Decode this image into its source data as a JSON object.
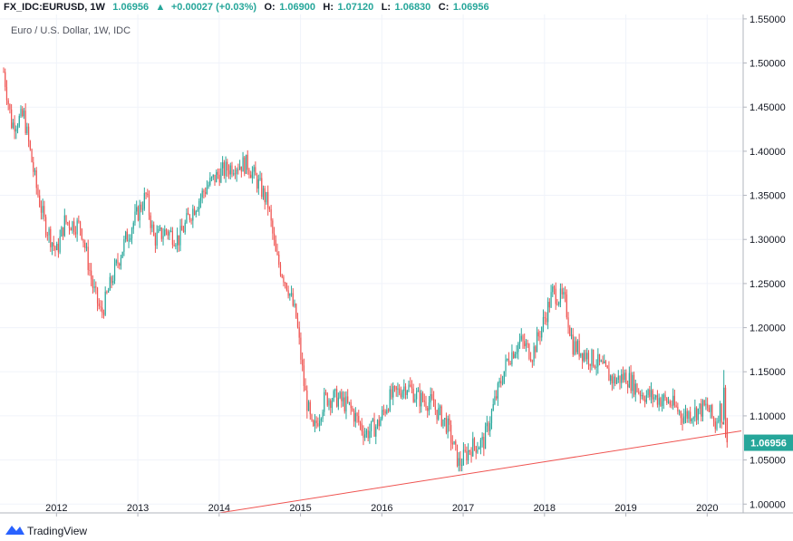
{
  "header": {
    "symbol": "FX_IDC:EURUSD, 1W",
    "last": "1.06956",
    "change": "+0.00027 (+0.03%)",
    "open_label": "O:",
    "open": "1.06900",
    "high_label": "H:",
    "high": "1.07120",
    "low_label": "L:",
    "low": "1.06830",
    "close_label": "C:",
    "close": "1.06956"
  },
  "subtitle": "Euro / U.S. Dollar, 1W, IDC",
  "brand": "TradingView",
  "colors": {
    "up": "#26a69a",
    "down": "#ef5350",
    "trendline": "#ef5350",
    "grid": "#f0f3fa",
    "axis": "#b2b5be"
  },
  "chart_data": {
    "type": "candlestick",
    "title": "Euro / U.S. Dollar, 1W, IDC",
    "xlabel": "",
    "ylabel": "",
    "x_range": [
      2011.35,
      2020.42
    ],
    "ylim": [
      0.99,
      1.555
    ],
    "x_ticks": [
      "2012",
      "2013",
      "2014",
      "2015",
      "2016",
      "2017",
      "2018",
      "2019",
      "2020"
    ],
    "x_tick_values": [
      2012,
      2013,
      2014,
      2015,
      2016,
      2017,
      2018,
      2019,
      2020
    ],
    "y_ticks": [
      "1.00000",
      "1.05000",
      "1.10000",
      "1.15000",
      "1.20000",
      "1.25000",
      "1.30000",
      "1.35000",
      "1.40000",
      "1.45000",
      "1.50000",
      "1.55000"
    ],
    "y_tick_values": [
      1.0,
      1.05,
      1.1,
      1.15,
      1.2,
      1.25,
      1.3,
      1.35,
      1.4,
      1.45,
      1.5,
      1.55
    ],
    "last_price_label": "1.06956",
    "last_price": 1.06956,
    "path": [
      [
        2011.35,
        1.49
      ],
      [
        2011.45,
        1.43
      ],
      [
        2011.6,
        1.44
      ],
      [
        2011.75,
        1.36
      ],
      [
        2011.85,
        1.32
      ],
      [
        2012.0,
        1.285
      ],
      [
        2012.1,
        1.32
      ],
      [
        2012.3,
        1.315
      ],
      [
        2012.45,
        1.245
      ],
      [
        2012.55,
        1.215
      ],
      [
        2012.7,
        1.26
      ],
      [
        2012.85,
        1.3
      ],
      [
        2013.0,
        1.33
      ],
      [
        2013.1,
        1.35
      ],
      [
        2013.2,
        1.3
      ],
      [
        2013.35,
        1.31
      ],
      [
        2013.5,
        1.3
      ],
      [
        2013.65,
        1.33
      ],
      [
        2013.85,
        1.36
      ],
      [
        2014.0,
        1.375
      ],
      [
        2014.2,
        1.385
      ],
      [
        2014.35,
        1.385
      ],
      [
        2014.5,
        1.36
      ],
      [
        2014.6,
        1.34
      ],
      [
        2014.7,
        1.28
      ],
      [
        2014.85,
        1.245
      ],
      [
        2014.95,
        1.21
      ],
      [
        2015.05,
        1.13
      ],
      [
        2015.15,
        1.08
      ],
      [
        2015.3,
        1.12
      ],
      [
        2015.45,
        1.12
      ],
      [
        2015.6,
        1.11
      ],
      [
        2015.8,
        1.08
      ],
      [
        2015.95,
        1.09
      ],
      [
        2016.1,
        1.12
      ],
      [
        2016.3,
        1.135
      ],
      [
        2016.45,
        1.12
      ],
      [
        2016.6,
        1.115
      ],
      [
        2016.8,
        1.09
      ],
      [
        2016.95,
        1.045
      ],
      [
        2017.1,
        1.065
      ],
      [
        2017.25,
        1.07
      ],
      [
        2017.4,
        1.12
      ],
      [
        2017.55,
        1.165
      ],
      [
        2017.7,
        1.185
      ],
      [
        2017.85,
        1.17
      ],
      [
        2018.0,
        1.21
      ],
      [
        2018.1,
        1.24
      ],
      [
        2018.25,
        1.23
      ],
      [
        2018.35,
        1.18
      ],
      [
        2018.5,
        1.17
      ],
      [
        2018.65,
        1.16
      ],
      [
        2018.85,
        1.14
      ],
      [
        2019.0,
        1.145
      ],
      [
        2019.2,
        1.125
      ],
      [
        2019.4,
        1.12
      ],
      [
        2019.55,
        1.115
      ],
      [
        2019.7,
        1.1
      ],
      [
        2019.85,
        1.105
      ],
      [
        2020.0,
        1.11
      ],
      [
        2020.1,
        1.09
      ],
      [
        2020.15,
        1.11
      ],
      [
        2020.2,
        1.095
      ],
      [
        2020.22,
        1.07
      ]
    ],
    "trendline": {
      "start": [
        2014.0,
        0.99
      ],
      "end": [
        2020.42,
        1.083
      ]
    }
  }
}
